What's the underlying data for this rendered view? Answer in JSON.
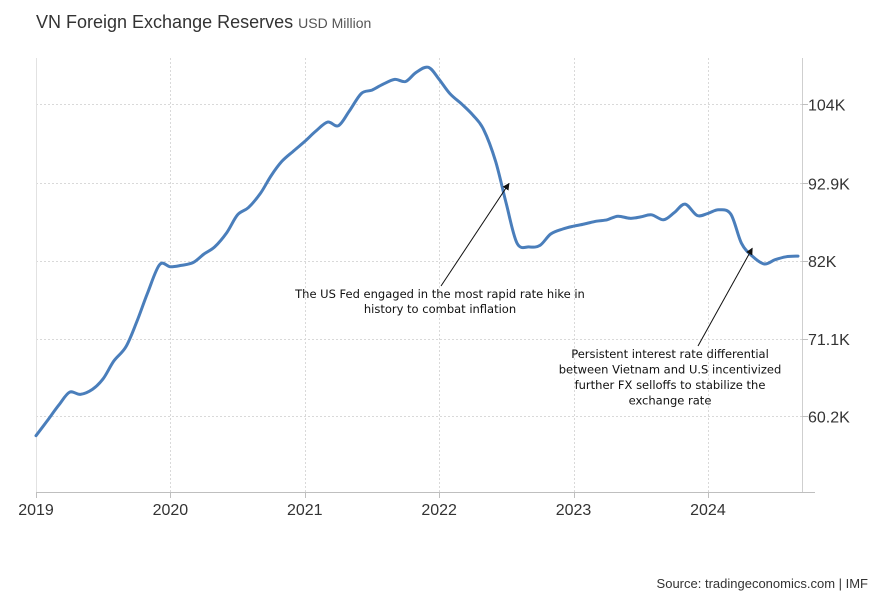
{
  "header": {
    "title": "VN Foreign Exchange Reserves",
    "subtitle": "USD Million"
  },
  "footer": {
    "source": "Source: tradingeconomics.com | IMF"
  },
  "chart_data": {
    "type": "line",
    "title": "VN Foreign Exchange Reserves",
    "subtitle": "USD Million",
    "xlabel": "",
    "ylabel": "",
    "xlim": [
      2019.0,
      2024.7
    ],
    "ylim": [
      49600,
      110500
    ],
    "grid": true,
    "y_axis_side": "right",
    "x_ticks": [
      {
        "value": 2019,
        "label": "2019"
      },
      {
        "value": 2020,
        "label": "2020"
      },
      {
        "value": 2021,
        "label": "2021"
      },
      {
        "value": 2022,
        "label": "2022"
      },
      {
        "value": 2023,
        "label": "2023"
      },
      {
        "value": 2024,
        "label": "2024"
      }
    ],
    "y_ticks": [
      {
        "value": 60200,
        "label": "60.2K"
      },
      {
        "value": 71100,
        "label": "71.1K"
      },
      {
        "value": 82000,
        "label": "82K"
      },
      {
        "value": 92900,
        "label": "92.9K"
      },
      {
        "value": 104000,
        "label": "104K"
      }
    ],
    "series": [
      {
        "name": "VN Foreign Exchange Reserves",
        "color": "#4a7ebb",
        "x": [
          2019.0,
          2019.08,
          2019.17,
          2019.25,
          2019.33,
          2019.42,
          2019.5,
          2019.58,
          2019.67,
          2019.75,
          2019.83,
          2019.92,
          2020.0,
          2020.08,
          2020.17,
          2020.25,
          2020.33,
          2020.42,
          2020.5,
          2020.58,
          2020.67,
          2020.75,
          2020.83,
          2020.92,
          2021.0,
          2021.08,
          2021.17,
          2021.25,
          2021.33,
          2021.42,
          2021.5,
          2021.58,
          2021.67,
          2021.75,
          2021.83,
          2021.92,
          2022.0,
          2022.08,
          2022.17,
          2022.25,
          2022.33,
          2022.42,
          2022.5,
          2022.58,
          2022.67,
          2022.75,
          2022.83,
          2022.92,
          2023.0,
          2023.08,
          2023.17,
          2023.25,
          2023.33,
          2023.42,
          2023.5,
          2023.58,
          2023.67,
          2023.75,
          2023.83,
          2023.92,
          2024.0,
          2024.08,
          2024.17,
          2024.25,
          2024.33,
          2024.42,
          2024.5,
          2024.58,
          2024.67
        ],
        "values": [
          57500,
          59500,
          61800,
          63600,
          63300,
          64000,
          65500,
          68000,
          70000,
          73500,
          77500,
          81500,
          81200,
          81400,
          81800,
          83000,
          84000,
          86000,
          88500,
          89500,
          91500,
          94000,
          96000,
          97500,
          98800,
          100200,
          101500,
          101000,
          103000,
          105500,
          106000,
          106800,
          107500,
          107200,
          108500,
          109200,
          107500,
          105500,
          104000,
          102500,
          100500,
          96000,
          90000,
          84500,
          84000,
          84200,
          85800,
          86500,
          86900,
          87200,
          87600,
          87800,
          88300,
          88000,
          88200,
          88500,
          87800,
          88800,
          90000,
          88400,
          88700,
          89200,
          88600,
          84500,
          82700,
          81600,
          82200,
          82600,
          82700
        ]
      }
    ],
    "annotations": [
      {
        "lines": [
          "The US Fed engaged in the most rapid rate hike in",
          "history to combat inflation"
        ],
        "target_x": 2022.52,
        "target_y": 92900
      },
      {
        "lines": [
          "Persistent interest rate differential",
          "between Vietnam and U.S incentivized",
          "further FX selloffs to stabilize the",
          "exchange rate"
        ],
        "target_x": 2024.33,
        "target_y": 83800
      }
    ]
  }
}
